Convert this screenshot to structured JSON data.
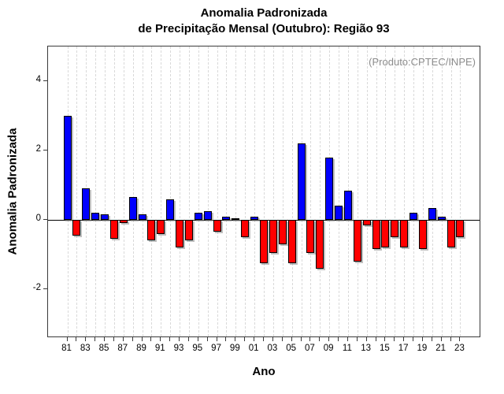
{
  "title": {
    "line1": "Anomalia Padronizada",
    "line2": "de Precipitação Mensal (Outubro): Região 93"
  },
  "annotation": "(Produto:CPTEC/INPE)",
  "chart_data": {
    "type": "bar",
    "title": "Anomalia Padronizada de Precipitação Mensal (Outubro): Região 93",
    "xlabel": "Ano",
    "ylabel": "Anomalia Padronizada",
    "x": [
      1981,
      1982,
      1983,
      1984,
      1985,
      1986,
      1987,
      1988,
      1989,
      1990,
      1991,
      1992,
      1993,
      1994,
      1995,
      1996,
      1997,
      1998,
      1999,
      2000,
      2001,
      2002,
      2003,
      2004,
      2005,
      2006,
      2007,
      2008,
      2009,
      2010,
      2011,
      2012,
      2013,
      2014,
      2015,
      2016,
      2017,
      2018,
      2019,
      2020,
      2021,
      2022,
      2023
    ],
    "values": [
      3.0,
      -0.45,
      0.9,
      0.2,
      0.15,
      -0.55,
      -0.1,
      0.65,
      0.15,
      -0.6,
      -0.4,
      0.6,
      -0.8,
      -0.6,
      0.2,
      0.25,
      -0.35,
      0.1,
      0.05,
      -0.5,
      0.08,
      -1.25,
      -0.95,
      -0.7,
      -1.25,
      2.2,
      -0.95,
      -1.4,
      1.8,
      0.4,
      0.85,
      -1.2,
      -0.15,
      -0.85,
      -0.8,
      -0.5,
      -0.8,
      0.2,
      -0.85,
      0.35,
      0.1,
      -0.8,
      -0.5
    ],
    "x_tick_labels": [
      "81",
      "83",
      "85",
      "87",
      "89",
      "91",
      "93",
      "95",
      "97",
      "99",
      "01",
      "03",
      "05",
      "07",
      "09",
      "11",
      "13",
      "15",
      "17",
      "19",
      "21",
      "23"
    ],
    "y_ticks": [
      -2,
      0,
      2,
      4
    ],
    "y_tick_labels": [
      "-2",
      "0",
      "2",
      "4"
    ],
    "ylim": [
      -3.4,
      5.0
    ],
    "grid": "vertical-dashed",
    "legend": "none",
    "colors": {
      "positive": "#0000ff",
      "negative": "#ff0000",
      "bar_border": "#000000",
      "grid": "#d9d9d9",
      "annotation": "#8c8c8c",
      "axis": "#3a3a3a"
    }
  }
}
